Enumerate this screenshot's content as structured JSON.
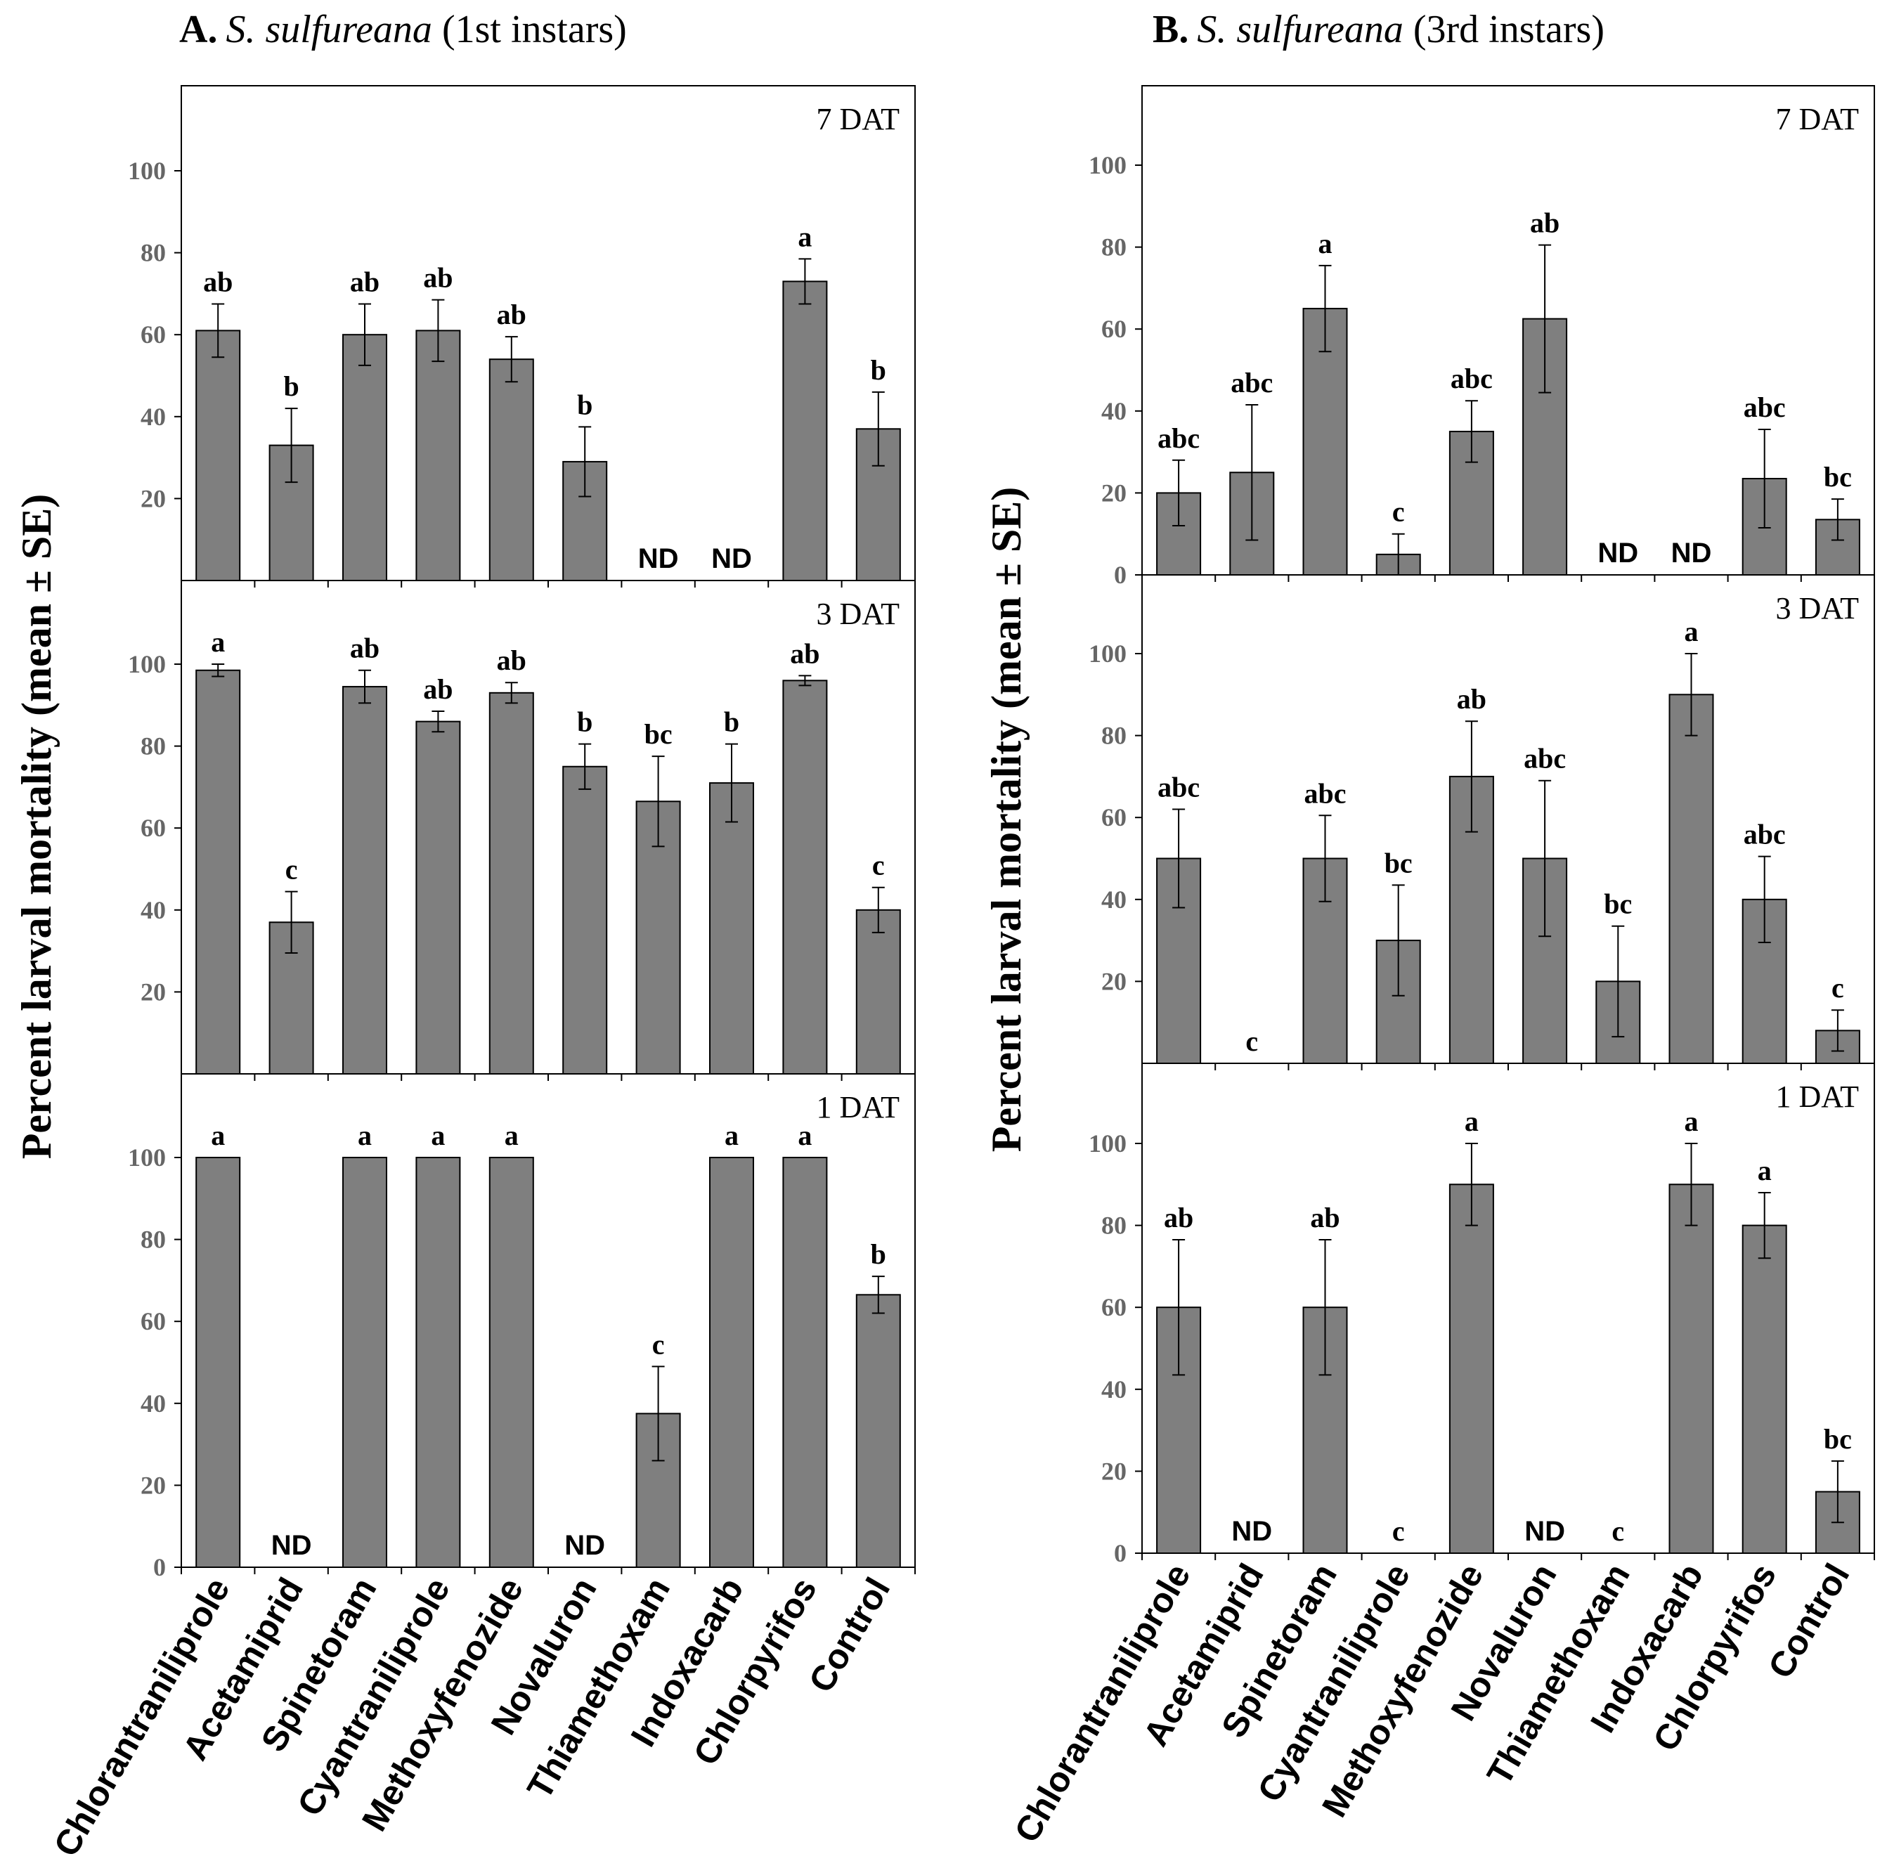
{
  "chart_data": [
    {
      "panel": "A",
      "title_bold": "A.",
      "title_species": "S. sulfureana",
      "title_rest": " (1st instars)",
      "ylabel": "Percent larval mortality (mean ± SE)",
      "categories": [
        "Chlorantraniliprole",
        "Acetamiprid",
        "Spinetoram",
        "Cyantraniliprole",
        "Methoxyfenozide",
        "Novaluron",
        "Thiamethoxam",
        "Indoxacarb",
        "Chlorpyrifos",
        "Control"
      ],
      "subplots": [
        {
          "type": "bar",
          "label": "7 DAT",
          "ylim": [
            0,
            120
          ],
          "yticks": [
            "20",
            "40",
            "60",
            "80",
            "100"
          ],
          "values": [
            61,
            33,
            60,
            61,
            54,
            29,
            null,
            null,
            73,
            37
          ],
          "errors": [
            6.5,
            9,
            7.5,
            7.5,
            5.5,
            8.5,
            null,
            null,
            5.5,
            9
          ],
          "letters": [
            "ab",
            "b",
            "ab",
            "ab",
            "ab",
            "b",
            "ND",
            "ND",
            "a",
            "b"
          ]
        },
        {
          "type": "bar",
          "label": "3 DAT",
          "ylim": [
            0,
            120
          ],
          "yticks": [
            "20",
            "40",
            "60",
            "80",
            "100"
          ],
          "values": [
            98.5,
            37,
            94.5,
            86,
            93,
            75,
            66.5,
            71,
            96,
            40
          ],
          "errors": [
            1.5,
            7.5,
            4,
            2.5,
            2.5,
            5.5,
            11,
            9.5,
            1.2,
            5.5
          ],
          "letters": [
            "a",
            "c",
            "ab",
            "ab",
            "ab",
            "b",
            "bc",
            "b",
            "ab",
            "c"
          ]
        },
        {
          "type": "bar",
          "label": "1 DAT",
          "ylim": [
            0,
            120
          ],
          "yticks": [
            "0",
            "20",
            "40",
            "60",
            "80",
            "100"
          ],
          "values": [
            100,
            null,
            100,
            100,
            100,
            null,
            37.5,
            100,
            100,
            66.5
          ],
          "errors": [
            0,
            null,
            0,
            0,
            0,
            null,
            11.5,
            0,
            0,
            4.5
          ],
          "letters": [
            "a",
            "ND",
            "a",
            "a",
            "a",
            "ND",
            "c",
            "a",
            "a",
            "b"
          ]
        }
      ]
    },
    {
      "panel": "B",
      "title_bold": "B.",
      "title_species": "S. sulfureana",
      "title_rest": " (3rd instars)",
      "ylabel": "Percent larval mortality (mean ± SE)",
      "categories": [
        "Chlorantraniliprole",
        "Acetamiprid",
        "Spinetoram",
        "Cyantraniliprole",
        "Methoxyfenozide",
        "Novaluron",
        "Thiamethoxam",
        "Indoxacarb",
        "Chlorpyrifos",
        "Control"
      ],
      "subplots": [
        {
          "type": "bar",
          "label": "7 DAT",
          "ylim": [
            0,
            120
          ],
          "yticks": [
            "0",
            "20",
            "40",
            "60",
            "80",
            "100"
          ],
          "values": [
            20,
            25,
            65,
            5,
            35,
            62.5,
            null,
            null,
            23.5,
            13.5
          ],
          "errors": [
            8,
            16.5,
            10.5,
            5,
            7.5,
            18,
            null,
            null,
            12,
            5
          ],
          "letters": [
            "abc",
            "abc",
            "a",
            "c",
            "abc",
            "ab",
            "ND",
            "ND",
            "abc",
            "bc"
          ]
        },
        {
          "type": "bar",
          "label": "3 DAT",
          "ylim": [
            0,
            120
          ],
          "yticks": [
            "20",
            "40",
            "60",
            "80",
            "100"
          ],
          "values": [
            50,
            0,
            50,
            30,
            70,
            50,
            20,
            90,
            40,
            8
          ],
          "errors": [
            12,
            0,
            10.5,
            13.5,
            13.5,
            19,
            13.5,
            10,
            10.5,
            5
          ],
          "letters": [
            "abc",
            "c",
            "abc",
            "bc",
            "ab",
            "abc",
            "bc",
            "a",
            "abc",
            "c"
          ]
        },
        {
          "type": "bar",
          "label": "1 DAT",
          "ylim": [
            0,
            120
          ],
          "yticks": [
            "0",
            "20",
            "40",
            "60",
            "80",
            "100"
          ],
          "values": [
            60,
            null,
            60,
            0,
            90,
            null,
            0,
            90,
            80,
            15
          ],
          "errors": [
            16.5,
            null,
            16.5,
            0,
            10,
            null,
            0,
            10,
            8,
            7.5
          ],
          "letters": [
            "ab",
            "ND",
            "ab",
            "c",
            "a",
            "ND",
            "c",
            "a",
            "a",
            "bc"
          ]
        }
      ]
    }
  ]
}
